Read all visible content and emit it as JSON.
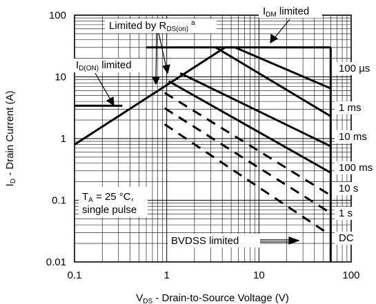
{
  "chart_data": {
    "type": "line",
    "title": "",
    "xlabel": {
      "main": "V",
      "sub": "DS",
      "rest": " - Drain-to-Source Voltage (V)"
    },
    "ylabel": {
      "main": "I",
      "sub": "D",
      "rest": " - Drain Current (A)"
    },
    "x_scale": "log",
    "y_scale": "log",
    "xlim": [
      0.1,
      100
    ],
    "ylim": [
      0.01,
      100
    ],
    "x_ticks": [
      {
        "value": 0.1,
        "label": "0.1"
      },
      {
        "value": 1,
        "label": "1"
      },
      {
        "value": 10,
        "label": "10"
      },
      {
        "value": 100,
        "label": "100"
      }
    ],
    "y_ticks": [
      {
        "value": 0.01,
        "label": "0.01"
      },
      {
        "value": 0.1,
        "label": "0.1"
      },
      {
        "value": 1,
        "label": "1"
      },
      {
        "value": 10,
        "label": "10"
      },
      {
        "value": 100,
        "label": "100"
      }
    ],
    "grid": true,
    "boundaries": {
      "idm_limit": {
        "x": [
          0.6,
          60
        ],
        "y": [
          30,
          30
        ]
      },
      "vds_max": {
        "x": [
          60,
          60
        ],
        "y": [
          0.01,
          30
        ]
      },
      "idon_limit": {
        "x": [
          0.1,
          0.33
        ],
        "y": [
          3.4,
          3.4
        ]
      },
      "rds_on_limit": {
        "x": [
          0.1,
          4.3
        ],
        "y": [
          0.8,
          30
        ]
      }
    },
    "series": [
      {
        "name": "100 µs",
        "dashed": false,
        "x": [
          4.3,
          5.5,
          60
        ],
        "y": [
          30,
          30,
          6.5
        ]
      },
      {
        "name": "1 ms",
        "dashed": false,
        "x": [
          3.4,
          60
        ],
        "y": [
          30,
          2.3
        ]
      },
      {
        "name": "10 ms",
        "dashed": false,
        "x": [
          1.4,
          60
        ],
        "y": [
          11.5,
          0.75
        ]
      },
      {
        "name": "100 ms",
        "dashed": false,
        "x": [
          1.05,
          60
        ],
        "y": [
          8.5,
          0.28
        ]
      },
      {
        "name": "10 s",
        "dashed": true,
        "x": [
          0.95,
          60
        ],
        "y": [
          5.5,
          0.12
        ]
      },
      {
        "name": "1 s",
        "dashed": true,
        "x": [
          0.95,
          60
        ],
        "y": [
          3.1,
          0.062
        ]
      },
      {
        "name": "DC",
        "dashed": true,
        "x": [
          0.95,
          60
        ],
        "y": [
          1.7,
          0.027
        ]
      }
    ],
    "annotations": {
      "idm": {
        "main": "I",
        "sub": "DM",
        "rest": " limited"
      },
      "rds": {
        "main": "Limited by R",
        "sub": "DS(on)",
        "sup": "a"
      },
      "idon": {
        "main": "I",
        "sub": "D(ON)",
        "rest": " limited"
      },
      "ta_line1": {
        "main": "T",
        "sub": "A",
        "rest": " = 25 °C,"
      },
      "ta_line2": "single pulse",
      "bvdss": "BVDSS limited"
    }
  }
}
